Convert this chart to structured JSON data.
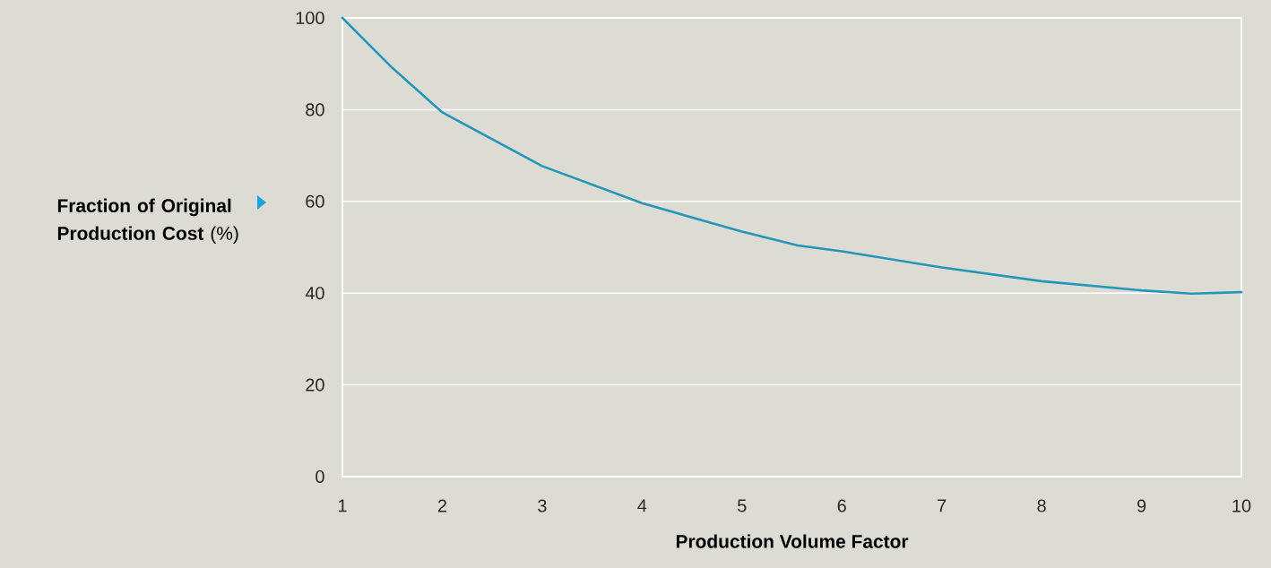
{
  "chart_data": {
    "type": "line",
    "xlabel": "Production Volume Factor",
    "ylabel": "**Fraction of Original Production Cost** (%)",
    "x": [
      1,
      1.5,
      2,
      3,
      4,
      5,
      5.56,
      6,
      7,
      8,
      9,
      9.5,
      10
    ],
    "series": [
      {
        "color": "#2596b8",
        "values": [
          100,
          89.1,
          79.4,
          67.7,
          59.6,
          53.4,
          50.4,
          49.1,
          45.6,
          42.6,
          40.6,
          39.9,
          40.2
        ]
      }
    ],
    "xlim": [
      1,
      10
    ],
    "xticks": [
      1,
      2,
      3,
      4,
      5,
      6,
      7,
      8,
      9,
      10
    ],
    "ylim": [
      0,
      100
    ],
    "yticks": [
      0,
      20,
      40,
      60,
      80,
      100
    ],
    "grid": "y",
    "marker": "none",
    "line_style": "solid"
  }
}
